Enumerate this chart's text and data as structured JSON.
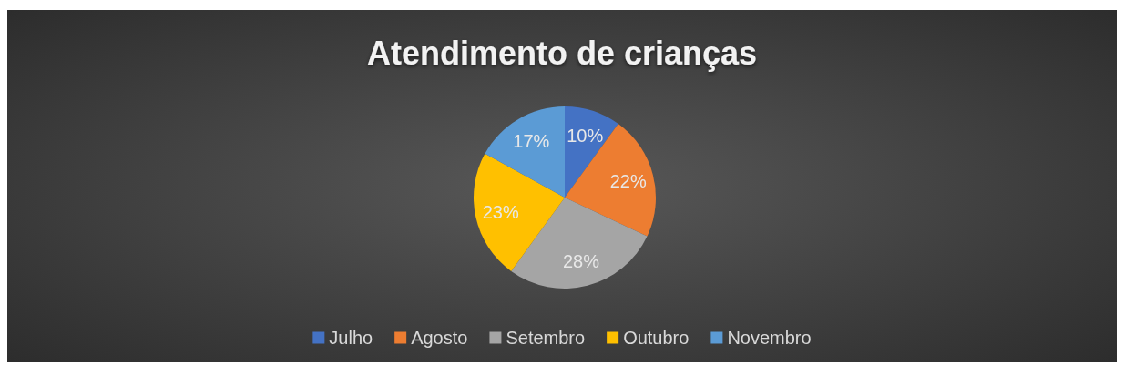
{
  "chart_data": {
    "type": "pie",
    "title": "Atendimento de crianças",
    "categories": [
      "Julho",
      "Agosto",
      "Setembro",
      "Outubro",
      "Novembro"
    ],
    "values": [
      10,
      22,
      28,
      23,
      17
    ],
    "colors": [
      "#4472c4",
      "#ed7d31",
      "#a5a5a5",
      "#ffc000",
      "#5b9bd5"
    ],
    "value_labels": [
      "10%",
      "22%",
      "28%",
      "23%",
      "17%"
    ],
    "legend": "bottom"
  }
}
